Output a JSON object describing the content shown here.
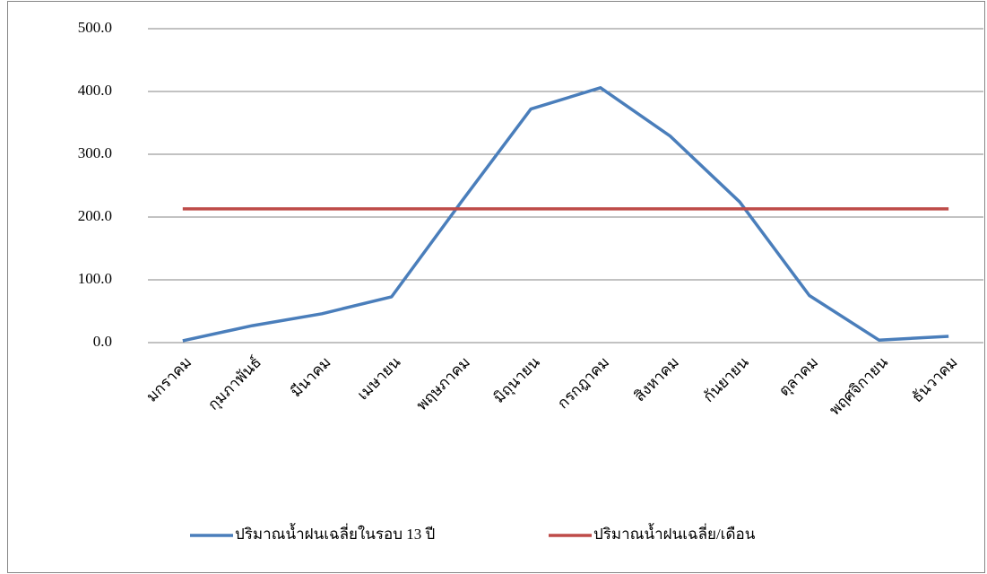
{
  "chart_data": {
    "type": "line",
    "categories": [
      "มกราคม",
      "กุมภาพันธ์",
      "มีนาคม",
      "เมษายน",
      "พฤษภาคม",
      "มิถุนายน",
      "กรกฎาคม",
      "สิงหาคม",
      "กันยายน",
      "ตุลาคม",
      "พฤศจิกายน",
      "ธันวาคม"
    ],
    "series": [
      {
        "name": "ปริมาณน้ำฝนเฉลี่ยในรอบ 13 ปี",
        "color": "#4a7ebb",
        "values": [
          3,
          27,
          46,
          73,
          224,
          372,
          406,
          329,
          224,
          75,
          4,
          10
        ]
      },
      {
        "name": "ปริมาณน้ำฝนเฉลี่ย/เดือน",
        "color": "#be4b48",
        "values": [
          213,
          213,
          213,
          213,
          213,
          213,
          213,
          213,
          213,
          213,
          213,
          213
        ]
      }
    ],
    "ylim": [
      0,
      500
    ],
    "yticks": [
      {
        "value": 0,
        "label": "0.0"
      },
      {
        "value": 100,
        "label": "100.0"
      },
      {
        "value": 200,
        "label": "200.0"
      },
      {
        "value": 300,
        "label": "300.0"
      },
      {
        "value": 400,
        "label": "400.0"
      },
      {
        "value": 500,
        "label": "500.0"
      }
    ],
    "grid": true,
    "legend": "bottom"
  }
}
